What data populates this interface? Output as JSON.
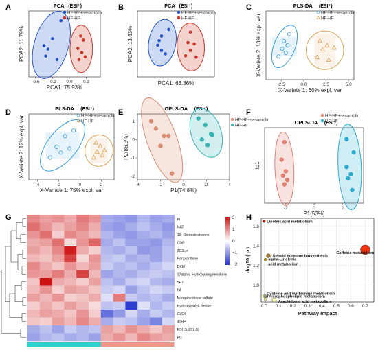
{
  "chart_data": [
    {
      "panel": "A",
      "type": "scatter",
      "title": "PCA",
      "title_mode": "(ESI⁺)",
      "xlabel": "PCA1: 75.93%",
      "ylabel": "PCA2: 11.79%",
      "xticks": [
        "-0.6",
        "-0.3",
        "0.0",
        "0.3"
      ],
      "xtick_values": [
        -0.6,
        -0.3,
        0.0,
        0.3
      ],
      "xlim": [
        -0.72,
        0.55
      ],
      "ylim": [
        -0.45,
        0.5
      ],
      "legend": [
        "HF-HF+sesamolin",
        "HF-HF"
      ],
      "series": [
        {
          "name": "HF-HF+sesamolin",
          "color": "#2255cc",
          "x": [
            -0.15,
            -0.3,
            -0.45,
            -0.38,
            -0.42,
            -0.22
          ],
          "y": [
            0.36,
            0.1,
            0.0,
            -0.05,
            -0.15,
            -0.2
          ]
        },
        {
          "name": "HF-HF",
          "color": "#cc3322",
          "x": [
            0.2,
            0.25,
            0.15,
            0.22,
            0.17,
            0.28
          ],
          "y": [
            0.14,
            0.08,
            -0.04,
            -0.1,
            -0.2,
            -0.16
          ]
        }
      ]
    },
    {
      "panel": "B",
      "type": "scatter",
      "title": "PCA",
      "title_mode": "(ESI⁺)",
      "xlabel": "PCA1: 63.36%",
      "ylabel": "PCA2: 13.63%",
      "xlim": [
        -0.8,
        0.8
      ],
      "ylim": [
        -0.5,
        0.5
      ],
      "legend": [
        "HF-HF+sesamolin",
        "HF-HF"
      ],
      "series": [
        {
          "name": "HF-HF+sesamolin",
          "color": "#2255cc",
          "x": [
            -0.15,
            -0.3,
            -0.35,
            -0.38,
            -0.3,
            -0.22
          ],
          "y": [
            0.22,
            0.12,
            0.05,
            -0.02,
            -0.1,
            -0.15
          ]
        },
        {
          "name": "HF-HF",
          "color": "#cc3322",
          "x": [
            0.3,
            0.25,
            0.38,
            0.3,
            0.2,
            0.42
          ],
          "y": [
            0.18,
            0.02,
            0.0,
            -0.1,
            -0.18,
            -0.2
          ]
        }
      ]
    },
    {
      "panel": "C",
      "type": "scatter",
      "title": "PLS-DA",
      "title_mode": "(ESI⁺)",
      "xlabel": "X-Variate 1: 60% expl. var",
      "ylabel": "X-Variate 2: 13% expl. var",
      "xticks": [
        "-2.5",
        "0.0",
        "2.5",
        "5.0"
      ],
      "xtick_values": [
        -2.5,
        0.0,
        2.5,
        5.0
      ],
      "xlim": [
        -4.2,
        5.6
      ],
      "ylim": [
        -4,
        4
      ],
      "legend": [
        "HF-HF+sesamolin",
        "HF-HF"
      ],
      "series": [
        {
          "name": "HF-HF+sesamolin",
          "color": "#3399dd",
          "marker": "open-circle",
          "x": [
            -1.6,
            -2.2,
            -1.8,
            -2.4,
            -2.0,
            -2.8
          ],
          "y": [
            1.3,
            0.5,
            0.0,
            -0.4,
            -0.9,
            -1.3
          ]
        },
        {
          "name": "HF-HF",
          "color": "#e0a050",
          "marker": "open-triangle",
          "x": [
            1.8,
            2.6,
            3.4,
            2.1,
            1.5,
            2.8
          ],
          "y": [
            0.5,
            0.0,
            -0.3,
            -0.5,
            -1.4,
            -1.7
          ]
        }
      ]
    },
    {
      "panel": "D",
      "type": "scatter",
      "title": "PLS-DA",
      "title_mode": "(ESI⁺)",
      "xlabel": "X-Variate 1: 75% expl. var",
      "ylabel": "X-Variate 2: 12% expl. var",
      "xticks": [
        "-4",
        "-2",
        "0",
        "2"
      ],
      "xtick_values": [
        -4,
        -2,
        0,
        2
      ],
      "xlim": [
        -4.8,
        3.2
      ],
      "ylim": [
        -4,
        4
      ],
      "legend": [
        "HF-HF+sesamolin",
        "HF-HF"
      ],
      "series": [
        {
          "name": "HF-HF+sesamolin",
          "color": "#3399dd",
          "marker": "open-circle",
          "x": [
            -0.6,
            -1.4,
            -2.2,
            -1.0,
            -1.8,
            -2.8
          ],
          "y": [
            2.0,
            1.3,
            0.0,
            -0.2,
            -0.7,
            -1.3
          ]
        },
        {
          "name": "HF-HF",
          "color": "#e0a050",
          "marker": "open-triangle",
          "x": [
            1.5,
            1.9,
            2.3,
            1.6,
            2.1,
            1.3
          ],
          "y": [
            0.5,
            0.1,
            -0.4,
            -0.6,
            -1.0,
            -1.3
          ]
        }
      ]
    },
    {
      "panel": "E",
      "type": "scatter",
      "title": "OPLS-DA",
      "title_mode": "(ESI⁺)",
      "xlabel": "P1(74.8%)",
      "ylabel": "P2(86.5%)",
      "xticks": [
        "-4",
        "-2",
        "0",
        "2",
        "4"
      ],
      "xtick_values": [
        -4,
        -2,
        0,
        2,
        4
      ],
      "yticks": [
        "-2",
        "-1",
        "0",
        "1"
      ],
      "ytick_values": [
        -2,
        -1,
        0,
        1
      ],
      "xlim": [
        -4,
        4
      ],
      "ylim": [
        -2.2,
        1.4
      ],
      "legend": [
        "HF-HF+sesamolin",
        "HF-HF"
      ],
      "series": [
        {
          "name": "HF-HF+sesamolin",
          "color": "#d98c70",
          "x": [
            -2.8,
            -2.4,
            -1.7,
            -1.3,
            -2.0,
            -1.0
          ],
          "y": [
            1.0,
            0.6,
            0.2,
            0.2,
            -0.35,
            -1.85
          ]
        },
        {
          "name": "HF-HF",
          "color": "#35b5b5",
          "x": [
            1.3,
            1.9,
            2.4,
            1.6,
            2.5,
            2.1
          ],
          "y": [
            1.15,
            0.8,
            0.3,
            0.0,
            0.25,
            -0.3
          ]
        }
      ]
    },
    {
      "panel": "F",
      "type": "scatter",
      "title": "OPLS-DA",
      "title_mode": "(ESI⁺)",
      "xlabel": "P1(53%)",
      "ylabel": "to1",
      "xticks": [
        "-2",
        "0",
        "2"
      ],
      "xtick_values": [
        -2,
        0,
        2
      ],
      "xlim": [
        -3.5,
        3.5
      ],
      "ylim": [
        -2.6,
        2.6
      ],
      "legend": [
        "HF-HF+sesamolin",
        "HF-HF"
      ],
      "series": [
        {
          "name": "HF-HF+sesamolin",
          "color": "#e08070",
          "x": [
            -2.1,
            -2.3,
            -2.0,
            -2.2,
            -1.9,
            -2.1
          ],
          "y": [
            1.6,
            0.4,
            -0.4,
            -0.7,
            -1.0,
            -1.3
          ]
        },
        {
          "name": "HF-HF",
          "color": "#2aaacc",
          "x": [
            2.3,
            2.8,
            2.3,
            2.6,
            2.4,
            2.7
          ],
          "y": [
            1.8,
            0.9,
            -0.1,
            -0.6,
            -0.9,
            -1.7
          ]
        }
      ]
    },
    {
      "panel": "G",
      "type": "heatmap",
      "rows": [
        "PI",
        "NAT",
        "19- Oxotestosterone",
        "CDP",
        "2C3LH",
        "Paraxanthine",
        "DKM",
        "17alpha- Hydroxypregnenolone",
        "5HT",
        "PA",
        "Norepinephrine sulfate",
        "Hydroxyprolyl- Serine",
        "CLE4",
        "41HP",
        "PS(15:0/22:0)",
        "PC"
      ],
      "groups": [
        {
          "name": "HF-HF+sesamolin",
          "color": "#33cccc",
          "count": 6
        },
        {
          "name": "HF-HF",
          "color": "#ee9988",
          "count": 6
        }
      ],
      "color_scale": {
        "min": -2,
        "max": 2,
        "ticks": [
          "2",
          "1",
          "0",
          "−1",
          "−2"
        ],
        "low": "#2233cc",
        "mid": "#ffffff",
        "high": "#cc1111"
      },
      "values": [
        [
          1.0,
          0.8,
          0.9,
          0.7,
          1.1,
          0.9,
          -0.8,
          -0.9,
          -1.0,
          -0.7,
          -0.9,
          -0.8
        ],
        [
          1.2,
          0.9,
          0.6,
          0.8,
          1.0,
          0.7,
          -0.9,
          -1.0,
          -0.8,
          -0.6,
          -0.8,
          -1.0
        ],
        [
          0.9,
          1.2,
          0.4,
          1.0,
          0.8,
          0.6,
          -0.7,
          -0.9,
          -1.0,
          -0.8,
          -0.7,
          -0.9
        ],
        [
          0.7,
          0.8,
          1.2,
          0.3,
          0.9,
          1.3,
          -0.8,
          -0.6,
          -0.9,
          -0.9,
          -1.0,
          -0.7
        ],
        [
          0.8,
          0.6,
          1.0,
          1.9,
          0.7,
          0.4,
          -0.7,
          -0.8,
          -0.6,
          -1.0,
          -0.9,
          -0.6
        ],
        [
          0.6,
          0.5,
          0.8,
          1.6,
          0.3,
          0.9,
          -0.6,
          -0.5,
          -0.8,
          -0.7,
          -0.9,
          -0.6
        ],
        [
          1.0,
          0.7,
          0.5,
          0.9,
          0.6,
          0.8,
          -0.5,
          -0.7,
          -0.6,
          -0.8,
          -0.6,
          -0.4
        ],
        [
          0.9,
          0.8,
          1.1,
          0.7,
          1.6,
          0.6,
          -0.9,
          -0.7,
          -0.8,
          -0.6,
          -0.5,
          -0.6
        ],
        [
          0.5,
          2.0,
          0.7,
          0.6,
          0.4,
          0.8,
          -0.6,
          -0.8,
          -0.5,
          -0.4,
          -0.7,
          -0.8
        ],
        [
          0.6,
          0.9,
          0.4,
          0.8,
          0.7,
          0.5,
          -0.5,
          -0.4,
          -0.9,
          -0.6,
          -0.4,
          -0.5
        ],
        [
          0.8,
          0.6,
          0.9,
          0.4,
          0.5,
          0.7,
          -0.3,
          1.1,
          -0.5,
          -0.7,
          -0.6,
          -0.8
        ],
        [
          0.4,
          0.7,
          0.5,
          0.8,
          0.6,
          0.3,
          -0.6,
          -0.5,
          -1.9,
          -0.3,
          -0.7,
          -0.5
        ],
        [
          0.6,
          0.8,
          0.7,
          0.5,
          0.9,
          0.4,
          -1.4,
          -1.0,
          -0.4,
          -0.8,
          -0.5,
          -0.7
        ],
        [
          0.5,
          0.4,
          0.8,
          0.6,
          1.0,
          0.7,
          -0.8,
          -0.5,
          -0.6,
          -0.9,
          -1.2,
          -0.4
        ],
        [
          -0.8,
          -0.6,
          -0.9,
          -0.5,
          -0.7,
          -0.6,
          0.8,
          0.6,
          0.9,
          0.7,
          0.5,
          0.8
        ],
        [
          -0.9,
          -0.7,
          -0.6,
          -0.8,
          -0.7,
          -0.9,
          0.7,
          0.9,
          0.6,
          1.0,
          0.8,
          0.7
        ]
      ]
    },
    {
      "panel": "H",
      "type": "scatter",
      "xlabel": "Pathway Impact",
      "ylabel": "-log10 ( p )",
      "xticks": [
        "0.0",
        "0.1",
        "0.2",
        "0.3",
        "0.4",
        "0.5",
        "0.6",
        "0.7"
      ],
      "xtick_values": [
        0,
        0.1,
        0.2,
        0.3,
        0.4,
        0.5,
        0.6,
        0.7
      ],
      "yticks": [
        "1.0",
        "1.2",
        "1.4",
        "1.6"
      ],
      "ytick_values": [
        1.0,
        1.2,
        1.4,
        1.6
      ],
      "xlim": [
        -0.02,
        0.76
      ],
      "ylim": [
        0.83,
        1.68
      ],
      "points": [
        {
          "label": "Linoleic acid metabolism",
          "x": 0.0,
          "y": 1.65,
          "size": 2,
          "color": "#cc2200"
        },
        {
          "label": "Caffeine metabolism",
          "x": 0.7,
          "y": 1.36,
          "size": 7,
          "color": "#ee3311"
        },
        {
          "label": "Steroid hormone biosynthesis",
          "x": 0.03,
          "y": 1.3,
          "size": 3,
          "color": "#aa7722"
        },
        {
          "label": "alpha-Linolenic acid metabolism",
          "x": 0.01,
          "y": 1.26,
          "size": 2,
          "color": "#cc9900"
        },
        {
          "label": "Cysteine and methionine metabolism",
          "x": 0.0,
          "y": 0.89,
          "size": 2,
          "color": "#dddd66"
        },
        {
          "label": "Glycerophospholipid metabolism",
          "x": 0.01,
          "y": 0.86,
          "size": 2,
          "color": "#eeee88"
        },
        {
          "label": "Arachidonic acid metabolism",
          "x": 0.07,
          "y": 0.85,
          "size": 3,
          "color": "#ffffaa"
        }
      ]
    }
  ]
}
